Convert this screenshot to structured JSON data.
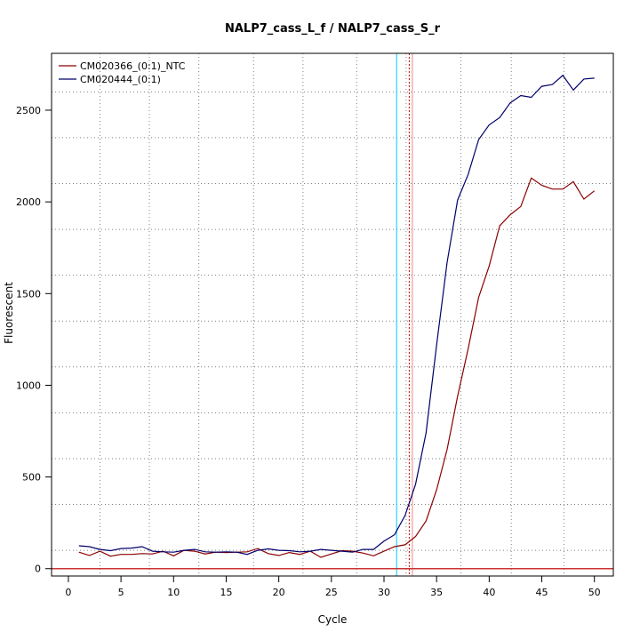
{
  "chart_data": {
    "type": "line",
    "title": "NALP7_cass_L_f / NALP7_cass_S_r",
    "xlabel": "Cycle",
    "ylabel": "Fluorescent",
    "xlim": [
      -1.6,
      51.8
    ],
    "ylim": [
      -40,
      2810
    ],
    "xticks": [
      0,
      5,
      10,
      15,
      20,
      25,
      30,
      35,
      40,
      45,
      50
    ],
    "yticks": [
      0,
      500,
      1000,
      1500,
      2000,
      2500
    ],
    "grid": true,
    "grid_x": [
      3,
      7.7,
      12.4,
      17.6,
      22.3,
      27.4,
      32.1,
      37.3,
      42.1,
      47.1
    ],
    "grid_y": [
      100,
      350,
      600,
      850,
      1100,
      1350,
      1600,
      1850,
      2100,
      2350,
      2600
    ],
    "legend_position": "top-left",
    "series": [
      {
        "name": "CM020366_(0:1)_NTC",
        "color": "#8b0000",
        "x": [
          1,
          2,
          3,
          4,
          5,
          6,
          7,
          8,
          9,
          10,
          11,
          12,
          13,
          14,
          15,
          16,
          17,
          18,
          19,
          20,
          21,
          22,
          23,
          24,
          25,
          26,
          27,
          28,
          29,
          30,
          31,
          32,
          33,
          34,
          35,
          36,
          37,
          38,
          39,
          40,
          41,
          42,
          43,
          44,
          45,
          46,
          47,
          48,
          49,
          50
        ],
        "y": [
          90,
          72,
          95,
          68,
          78,
          78,
          82,
          80,
          95,
          70,
          100,
          95,
          80,
          90,
          88,
          90,
          92,
          110,
          82,
          72,
          88,
          78,
          95,
          62,
          80,
          98,
          95,
          85,
          70,
          95,
          120,
          130,
          175,
          260,
          430,
          650,
          940,
          1200,
          1480,
          1650,
          1870,
          1930,
          1975,
          2130,
          2090,
          2070,
          2070,
          2110,
          2015,
          2060
        ]
      },
      {
        "name": "CM020444_(0:1)",
        "color": "#00006b",
        "x": [
          1,
          2,
          3,
          4,
          5,
          6,
          7,
          8,
          9,
          10,
          11,
          12,
          13,
          14,
          15,
          16,
          17,
          18,
          19,
          20,
          21,
          22,
          23,
          24,
          25,
          26,
          27,
          28,
          29,
          30,
          31,
          32,
          33,
          34,
          35,
          36,
          37,
          38,
          39,
          40,
          41,
          42,
          43,
          44,
          45,
          46,
          47,
          48,
          49,
          50
        ],
        "y": [
          125,
          120,
          105,
          98,
          110,
          112,
          120,
          95,
          92,
          90,
          100,
          105,
          92,
          90,
          92,
          90,
          78,
          100,
          108,
          100,
          98,
          92,
          95,
          105,
          100,
          95,
          90,
          105,
          105,
          150,
          185,
          290,
          460,
          740,
          1220,
          1670,
          2010,
          2150,
          2340,
          2420,
          2460,
          2540,
          2580,
          2570,
          2630,
          2640,
          2690,
          2610,
          2670,
          2675
        ]
      }
    ],
    "threshold": {
      "value": 0,
      "color": "#cc3333"
    },
    "vlines": [
      {
        "x": 31.2,
        "color": "#00c8ff",
        "style": "solid"
      },
      {
        "x": 32.4,
        "color": "#cc0000",
        "style": "dotted"
      },
      {
        "x": 32.7,
        "color": "#ee8888",
        "style": "solid"
      }
    ]
  }
}
